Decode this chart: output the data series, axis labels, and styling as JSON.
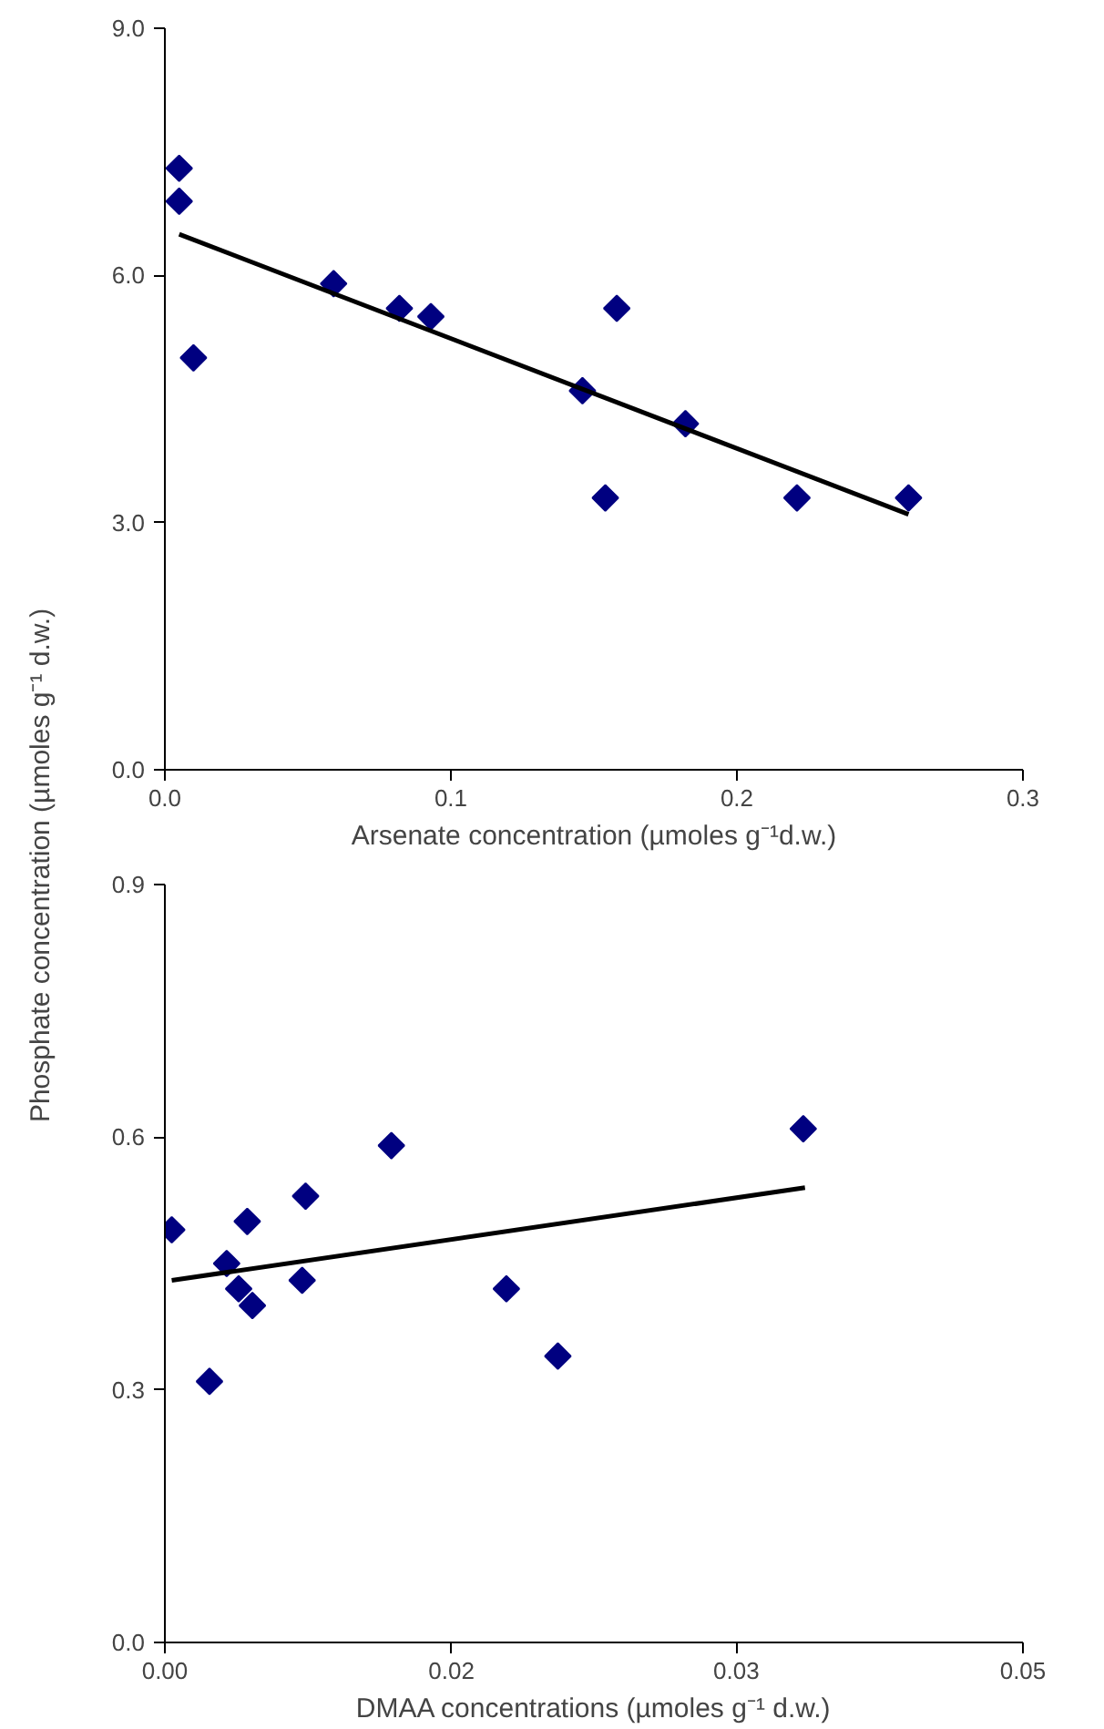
{
  "chart_data": [
    {
      "type": "scatter",
      "xlabel": "Arsenate concentration (µmoles g⁻¹d.w.)",
      "ylabel": "Phosphate concentration (µmoles g⁻¹ d.w.)",
      "grid": false,
      "xlim": [
        0,
        0.3
      ],
      "ylim": [
        0,
        9
      ],
      "xticks": [
        {
          "value": 0,
          "label": "0.0"
        },
        {
          "value": 0.1,
          "label": "0.1"
        },
        {
          "value": 0.2,
          "label": "0.2"
        },
        {
          "value": 0.3,
          "label": "0.3"
        }
      ],
      "yticks": [
        {
          "value": 0,
          "label": "0.0"
        },
        {
          "value": 3,
          "label": "3.0"
        },
        {
          "value": 6,
          "label": "6.0"
        },
        {
          "value": 9,
          "label": "9.0"
        }
      ],
      "series": [
        {
          "marker": "diamond",
          "color": "#000080",
          "x": [
            0.005,
            0.005,
            0.01,
            0.059,
            0.082,
            0.093,
            0.146,
            0.158,
            0.154,
            0.182,
            0.221,
            0.26
          ],
          "values": [
            7.3,
            6.9,
            5.0,
            5.9,
            5.6,
            5.5,
            4.6,
            5.6,
            3.3,
            4.2,
            3.3,
            3.3
          ]
        },
        {
          "type": "line",
          "color": "#000000",
          "x": [
            0.005,
            0.26
          ],
          "values": [
            6.5,
            3.1
          ]
        }
      ]
    },
    {
      "type": "scatter",
      "xlabel": "DMAA concentrations (µmoles g⁻¹ d.w.)",
      "grid": false,
      "xlim": [
        0,
        0.05
      ],
      "ylim": [
        0,
        0.9
      ],
      "xticks": [
        {
          "value": 0,
          "label": "0.00"
        },
        {
          "value": 0.0167,
          "label": "0.02"
        },
        {
          "value": 0.0333,
          "label": "0.03"
        },
        {
          "value": 0.05,
          "label": "0.05"
        }
      ],
      "yticks": [
        {
          "value": 0,
          "label": "0.0"
        },
        {
          "value": 0.3,
          "label": "0.3"
        },
        {
          "value": 0.6,
          "label": "0.6"
        },
        {
          "value": 0.9,
          "label": "0.9"
        }
      ],
      "series": [
        {
          "marker": "diamond",
          "color": "#000080",
          "x": [
            0.0004,
            0.0026,
            0.0036,
            0.0043,
            0.0048,
            0.0051,
            0.008,
            0.0082,
            0.0132,
            0.0199,
            0.0229,
            0.0372
          ],
          "values": [
            0.49,
            0.31,
            0.45,
            0.42,
            0.5,
            0.4,
            0.43,
            0.53,
            0.59,
            0.42,
            0.34,
            0.61
          ]
        },
        {
          "type": "line",
          "color": "#000000",
          "x": [
            0.0004,
            0.0373
          ],
          "values": [
            0.43,
            0.54
          ]
        }
      ]
    }
  ]
}
